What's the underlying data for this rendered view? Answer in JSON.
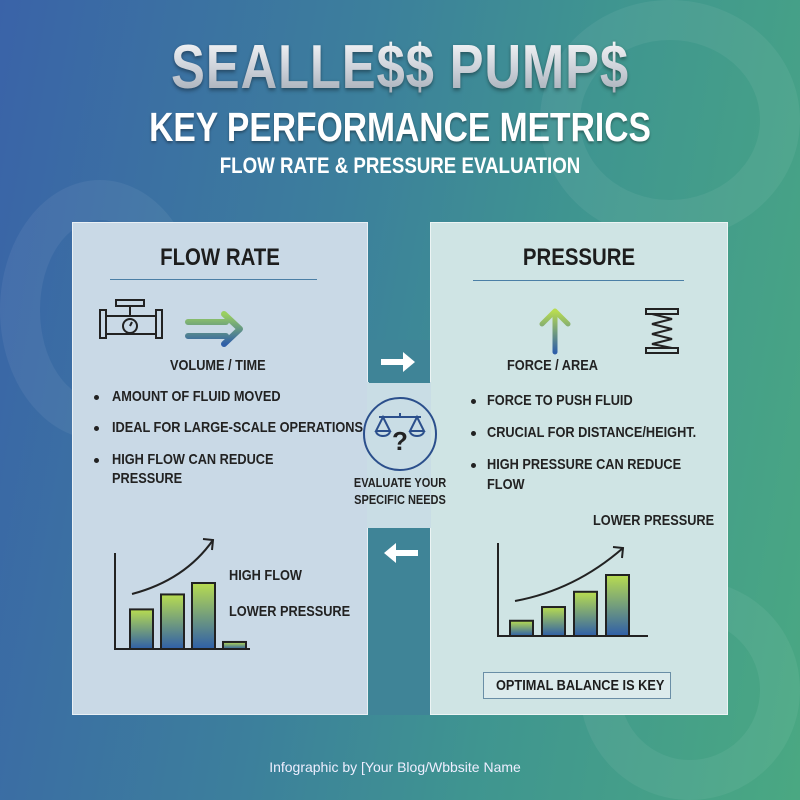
{
  "header": {
    "title": "SEALLE$$ PUMP$",
    "subtitle": "KEY PERFORMANCE METRICS",
    "tagline": "FLOW RATE & PRESSURE EVALUATION"
  },
  "flow_panel": {
    "heading": "FLOW RATE",
    "formula": "VOLUME / TIME",
    "icons": [
      "pipe-valve-gauge-icon",
      "right-double-arrow-icon"
    ],
    "bullets": [
      "AMOUNT OF FLUID MOVED",
      "IDEAL FOR LARGE-SCALE OPERATIONS",
      "HIGH FLOW CAN REDUCE",
      "PRESSURE"
    ],
    "chart_labels": [
      "HIGH FLOW",
      "LOWER PRESSURE"
    ]
  },
  "pressure_panel": {
    "heading": "PRESSURE",
    "formula": "FORCE / AREA",
    "icons": [
      "up-arrow-icon",
      "spring-icon"
    ],
    "bullets": [
      "FORCE TO PUSH FLUID",
      "CRUCIAL FOR DISTANCE/HEIGHT.",
      "HIGH PRESSURE CAN REDUCE",
      "FLOW"
    ],
    "chart_label": "LOWER PRESSURE",
    "button": "OPTIMAL BALANCE IS KEY"
  },
  "center": {
    "line1": "EVALUATE YOUR",
    "line2": "SPECIFIC NEEDS",
    "icon": "scale-question-icon"
  },
  "chart_data": [
    {
      "type": "bar",
      "values": [
        0.45,
        0.62,
        0.75,
        0.08
      ],
      "trend": "rising"
    },
    {
      "type": "bar",
      "values": [
        0.2,
        0.38,
        0.58,
        0.8
      ],
      "trend": "rising"
    }
  ],
  "footer": "Infographic by [Your Blog/Wbbsite Name",
  "colors": {
    "bar_top": "#b8dc50",
    "bar_bottom": "#2f5fa8",
    "connector": "#3f8497",
    "divider": "#4b7fa6"
  }
}
